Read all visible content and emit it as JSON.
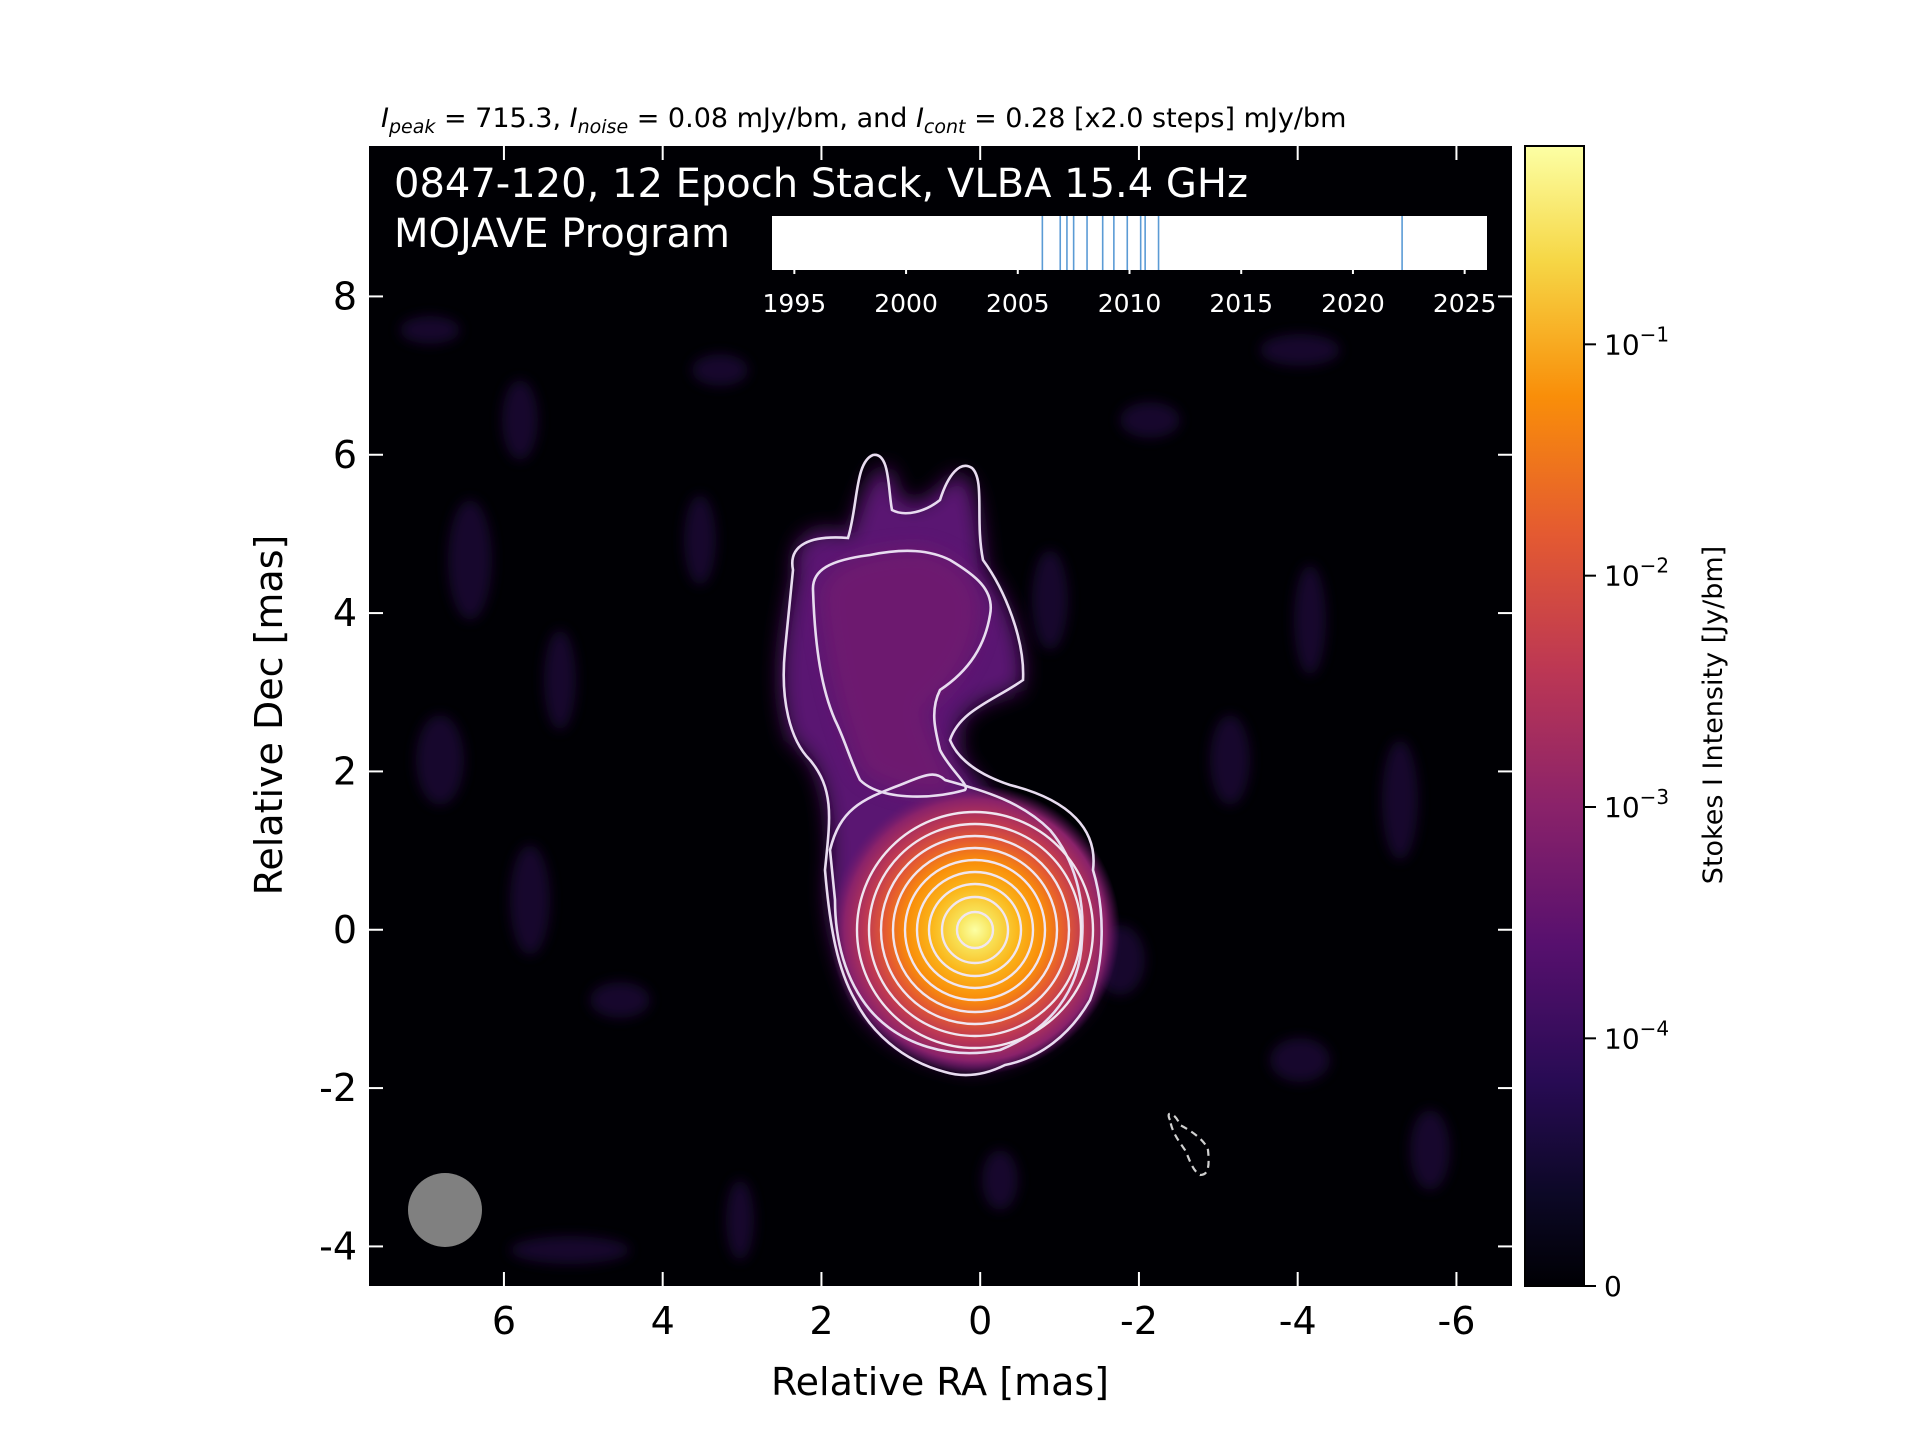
{
  "chart_data": {
    "type": "heatmap",
    "title": {
      "peak_sym": "I",
      "peak_sub": "peak",
      "peak_val": " = 715.3, ",
      "noise_sym": "I",
      "noise_sub": "noise",
      "noise_val": " = 0.08 mJy/bm, and ",
      "cont_sym": "I",
      "cont_sub": "cont",
      "cont_val": " = 0.28 [x2.0 steps] mJy/bm"
    },
    "label_line1": "0847-120, 12 Epoch Stack, VLBA 15.4 GHz",
    "label_line2": "MOJAVE Program",
    "xlabel": "Relative RA [mas]",
    "ylabel": "Relative Dec [mas]",
    "xlim": [
      7.7,
      -6.7
    ],
    "ylim": [
      -4.5,
      9.9
    ],
    "xticks": [
      6,
      4,
      2,
      0,
      -2,
      -4,
      -6
    ],
    "xtick_labels": [
      "6",
      "4",
      "2",
      "0",
      "-2",
      "-4",
      "-6"
    ],
    "yticks": [
      -4,
      -2,
      0,
      2,
      4,
      6,
      8
    ],
    "ytick_labels": [
      "-4",
      "-2",
      "0",
      "2",
      "4",
      "6",
      "8"
    ],
    "colormap": "inferno",
    "colorbar": {
      "label": "Stokes I Intensity [Jy/bm]",
      "scale": "log",
      "ticks": [
        {
          "value": 0.1,
          "base": "10",
          "exp": "−1"
        },
        {
          "value": 0.01,
          "base": "10",
          "exp": "−2"
        },
        {
          "value": 0.001,
          "base": "10",
          "exp": "−3"
        },
        {
          "value": 0.0001,
          "base": "10",
          "exp": "−4"
        },
        {
          "value": 0,
          "base": "0",
          "exp": ""
        }
      ]
    },
    "epoch_timeline": {
      "xlim": [
        1994,
        2026
      ],
      "ticks": [
        1995,
        2000,
        2005,
        2010,
        2015,
        2020,
        2025
      ],
      "tick_labels": [
        "1995",
        "2000",
        "2005",
        "2010",
        "2015",
        "2020",
        "2025"
      ],
      "epochs": [
        2006.1,
        2006.9,
        2007.2,
        2007.5,
        2008.1,
        2008.8,
        2009.3,
        2009.9,
        2010.5,
        2010.7,
        2011.3,
        2022.2
      ],
      "line_color": "#5b9bd5"
    },
    "core": {
      "ra": 0.0,
      "dec": 0.0,
      "peak_jy": 0.7153
    },
    "beam": {
      "ra": 6.6,
      "dec": -3.5,
      "major_mas": 0.95,
      "color": "#808080"
    },
    "contour_color": "#e8dcf0",
    "negative_contour_color": "#d0d0d0"
  }
}
